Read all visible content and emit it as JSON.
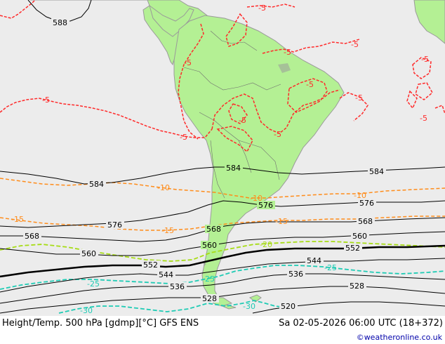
{
  "footer": {
    "title": "Height/Temp. 500 hPa [gdmp][°C] GFS ENS",
    "datetime": "Sa 02-05-2026 06:00 UTC (18+372)",
    "credit": "©weatheronline.co.uk"
  },
  "colors": {
    "ocean": "#ececec",
    "land": "#b4f094",
    "coast": "#9a9a9a",
    "height": "#000000",
    "temp_m5": "#ff2a2a",
    "temp_m10_m15": "#ff8c1a",
    "temp_m20": "#a6dc14",
    "temp_m25_m30": "#1ecbb4"
  },
  "height_labels": {
    "h588": "588",
    "h584a": "584",
    "h584b": "584",
    "h584c": "584",
    "h576a": "576",
    "h576b": "576",
    "h576c": "576",
    "h568a": "568",
    "h568b": "568",
    "h568c": "568",
    "h560a": "560",
    "h560b": "560",
    "h560c": "560",
    "h552a": "552",
    "h552b": "552",
    "h544a": "544",
    "h544b": "544",
    "h536a": "536",
    "h536b": "536",
    "h528a": "528",
    "h528b": "528",
    "h520": "520"
  },
  "temp_labels": {
    "t5a": "-5",
    "t5b": "-5",
    "t5c": "-5",
    "t5d": "-5",
    "t5e": "-5",
    "t5f": "-5",
    "t5g": "-5",
    "t5h": "-5",
    "t5i": "-5",
    "t5j": "-5",
    "t5k": "-5",
    "t5l": "-5",
    "t10a": "-10",
    "t10b": "-10",
    "t10c": "-10",
    "t15a": "-15",
    "t15b": "-15",
    "t15c": "-15",
    "t20": "-20",
    "t25a": "-25",
    "t25b": "-25",
    "t25c": "-25",
    "t30a": "-30",
    "t30b": "-30"
  }
}
